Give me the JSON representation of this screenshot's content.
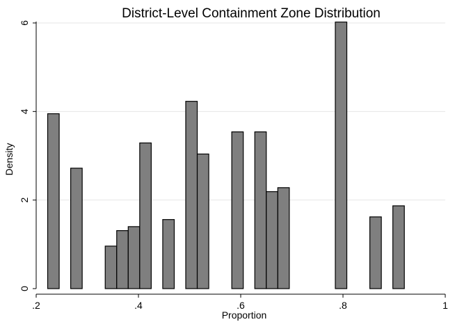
{
  "chart_data": {
    "type": "bar",
    "title": "District-Level Containment Zone Distribution",
    "xlabel": "Proportion",
    "ylabel": "Density",
    "xlim": [
      0.2,
      1.0
    ],
    "ylim": [
      0,
      6
    ],
    "xticks": [
      0.2,
      0.4,
      0.6,
      0.8,
      1.0
    ],
    "xtick_labels": [
      ".2",
      ".4",
      ".6",
      ".8",
      "1"
    ],
    "yticks": [
      0,
      2,
      4,
      6
    ],
    "ytick_labels": [
      "0",
      "2",
      "4",
      "6"
    ],
    "grid": "horizontal",
    "bar_width": 0.0225,
    "bar_color": "#7f7f7f",
    "bar_edge_color": "#000000",
    "bars": [
      {
        "x": 0.2225,
        "y": 3.95
      },
      {
        "x": 0.2675,
        "y": 2.72
      },
      {
        "x": 0.335,
        "y": 0.96
      },
      {
        "x": 0.3575,
        "y": 1.31
      },
      {
        "x": 0.38,
        "y": 1.4
      },
      {
        "x": 0.4025,
        "y": 3.29
      },
      {
        "x": 0.4475,
        "y": 1.56
      },
      {
        "x": 0.4925,
        "y": 4.23
      },
      {
        "x": 0.515,
        "y": 3.04
      },
      {
        "x": 0.5825,
        "y": 3.54
      },
      {
        "x": 0.6275,
        "y": 3.54
      },
      {
        "x": 0.65,
        "y": 2.19
      },
      {
        "x": 0.6725,
        "y": 2.28
      },
      {
        "x": 0.785,
        "y": 6.02
      },
      {
        "x": 0.8525,
        "y": 1.62
      },
      {
        "x": 0.8975,
        "y": 1.87
      }
    ]
  }
}
